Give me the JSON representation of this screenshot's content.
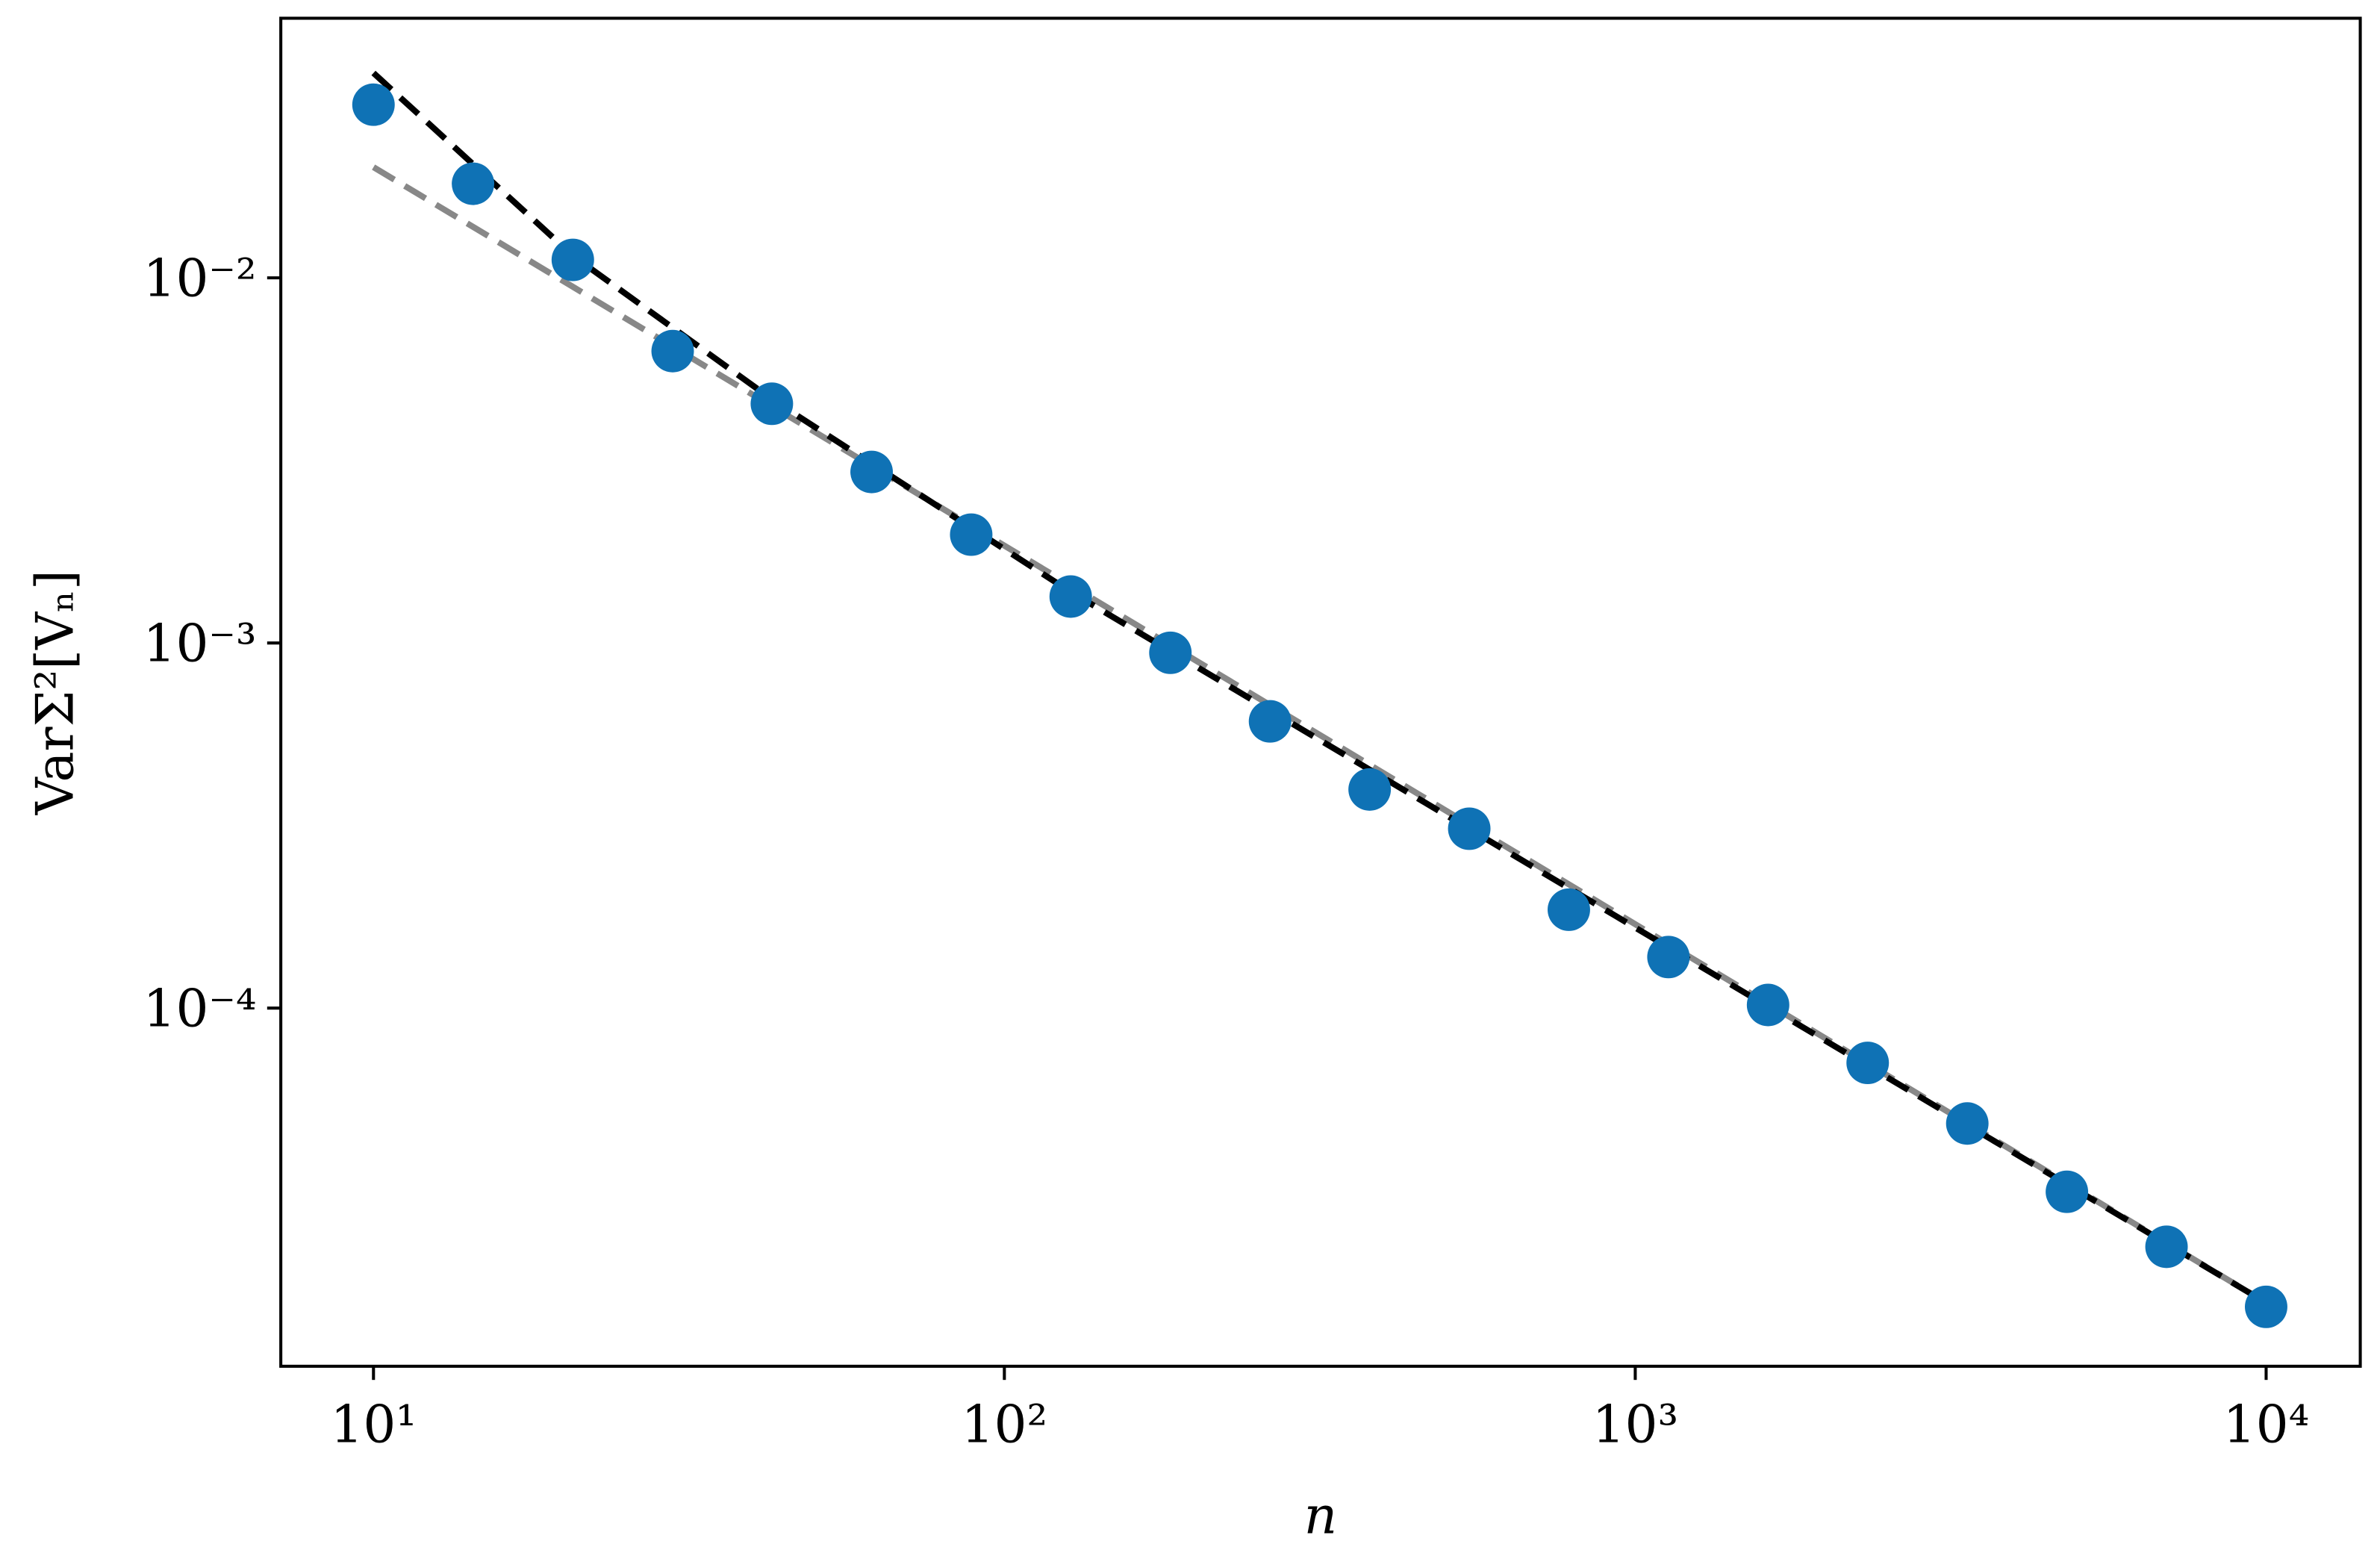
{
  "chart_data": {
    "type": "scatter",
    "xlabel": "n",
    "ylabel": "VarΣ²[Vₙ]",
    "xscale": "log",
    "yscale": "log",
    "xlim": [
      7.13,
      14100
    ],
    "ylim": [
      1.045e-05,
      0.0514
    ],
    "xticks": [
      {
        "value": 10,
        "label": "10¹"
      },
      {
        "value": 100,
        "label": "10²"
      },
      {
        "value": 1000,
        "label": "10³"
      },
      {
        "value": 10000,
        "label": "10⁴"
      }
    ],
    "yticks": [
      {
        "value": 0.0001,
        "label": "10⁻⁴"
      },
      {
        "value": 0.001,
        "label": "10⁻³"
      },
      {
        "value": 0.01,
        "label": "10⁻²"
      }
    ],
    "series": [
      {
        "type": "scatter",
        "color": "#0f72b5",
        "x": [
          10,
          14.38,
          20.7,
          29.8,
          42.8,
          61.6,
          88.6,
          127.4,
          183.3,
          263.7,
          379.3,
          545.6,
          784.8,
          1128.8,
          1623.8,
          2335.7,
          3359.8,
          4832.9,
          6951.9,
          10000
        ],
        "values": [
          0.0298,
          0.0181,
          0.0112,
          0.0063,
          0.00452,
          0.00294,
          0.00198,
          0.00134,
          0.00094,
          0.00061,
          0.000397,
          0.00031,
          0.000186,
          0.000138,
          0.000102,
          7.08e-05,
          4.83e-05,
          3.14e-05,
          2.22e-05,
          1.52e-05
        ]
      },
      {
        "type": "line",
        "color": "#888888",
        "dash": true,
        "x": [
          10,
          10000
        ],
        "values": [
          0.0201,
          1.56e-05
        ]
      },
      {
        "type": "line",
        "color": "#000000",
        "dash": true,
        "x": [
          10,
          20.7,
          42.8,
          127.4,
          10000
        ],
        "values": [
          0.0364,
          0.0115,
          0.00465,
          0.00138,
          1.56e-05
        ]
      }
    ]
  }
}
